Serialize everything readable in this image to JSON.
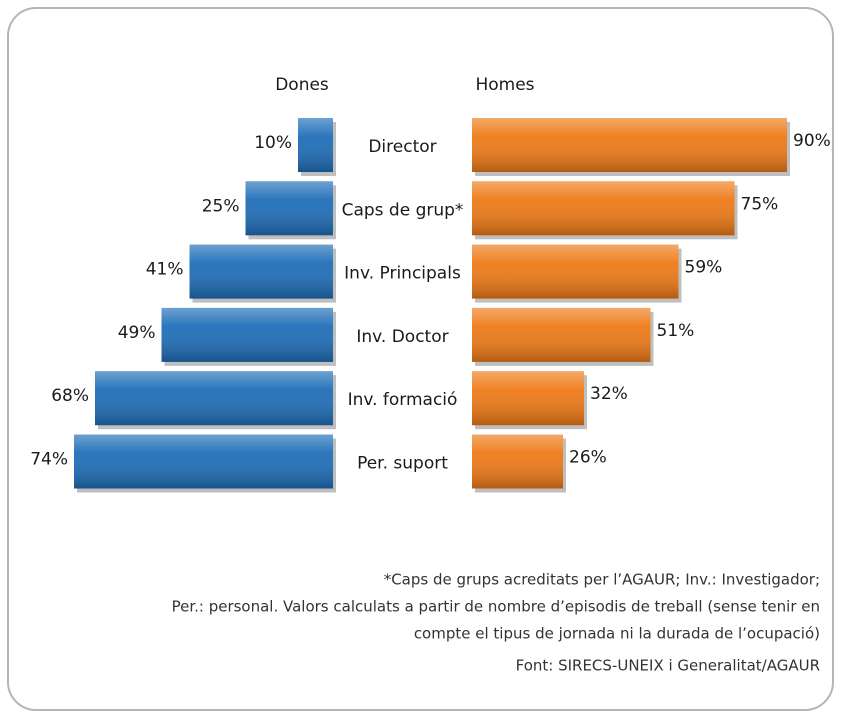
{
  "chart_data": {
    "type": "butterfly",
    "categories": [
      "Director",
      "Caps de grup*",
      "Inv. Principals",
      "Inv. Doctor",
      "Inv. formació",
      "Per. suport"
    ],
    "series": [
      {
        "name": "Dones",
        "color": "#1f6eb8",
        "values": [
          10,
          25,
          41,
          49,
          68,
          74
        ],
        "value_labels": [
          "10%",
          "25%",
          "41%",
          "49%",
          "68%",
          "74%"
        ]
      },
      {
        "name": "Homes",
        "color": "#ee7a17",
        "values": [
          90,
          75,
          59,
          51,
          32,
          26
        ],
        "value_labels": [
          "90%",
          "75%",
          "59%",
          "51%",
          "32%",
          "26%"
        ]
      }
    ],
    "notes": [
      "*Caps de grups acreditats per l’AGAUR; Inv.: Investigador;",
      "Per.: personal. Valors calculats a partir de nombre d’episodis de treball (sense tenir en",
      "compte el tipus de jornada ni la durada de l’ocupació)"
    ],
    "source": "Font: SIRECS-UNEIX i Generalitat/AGAUR"
  }
}
